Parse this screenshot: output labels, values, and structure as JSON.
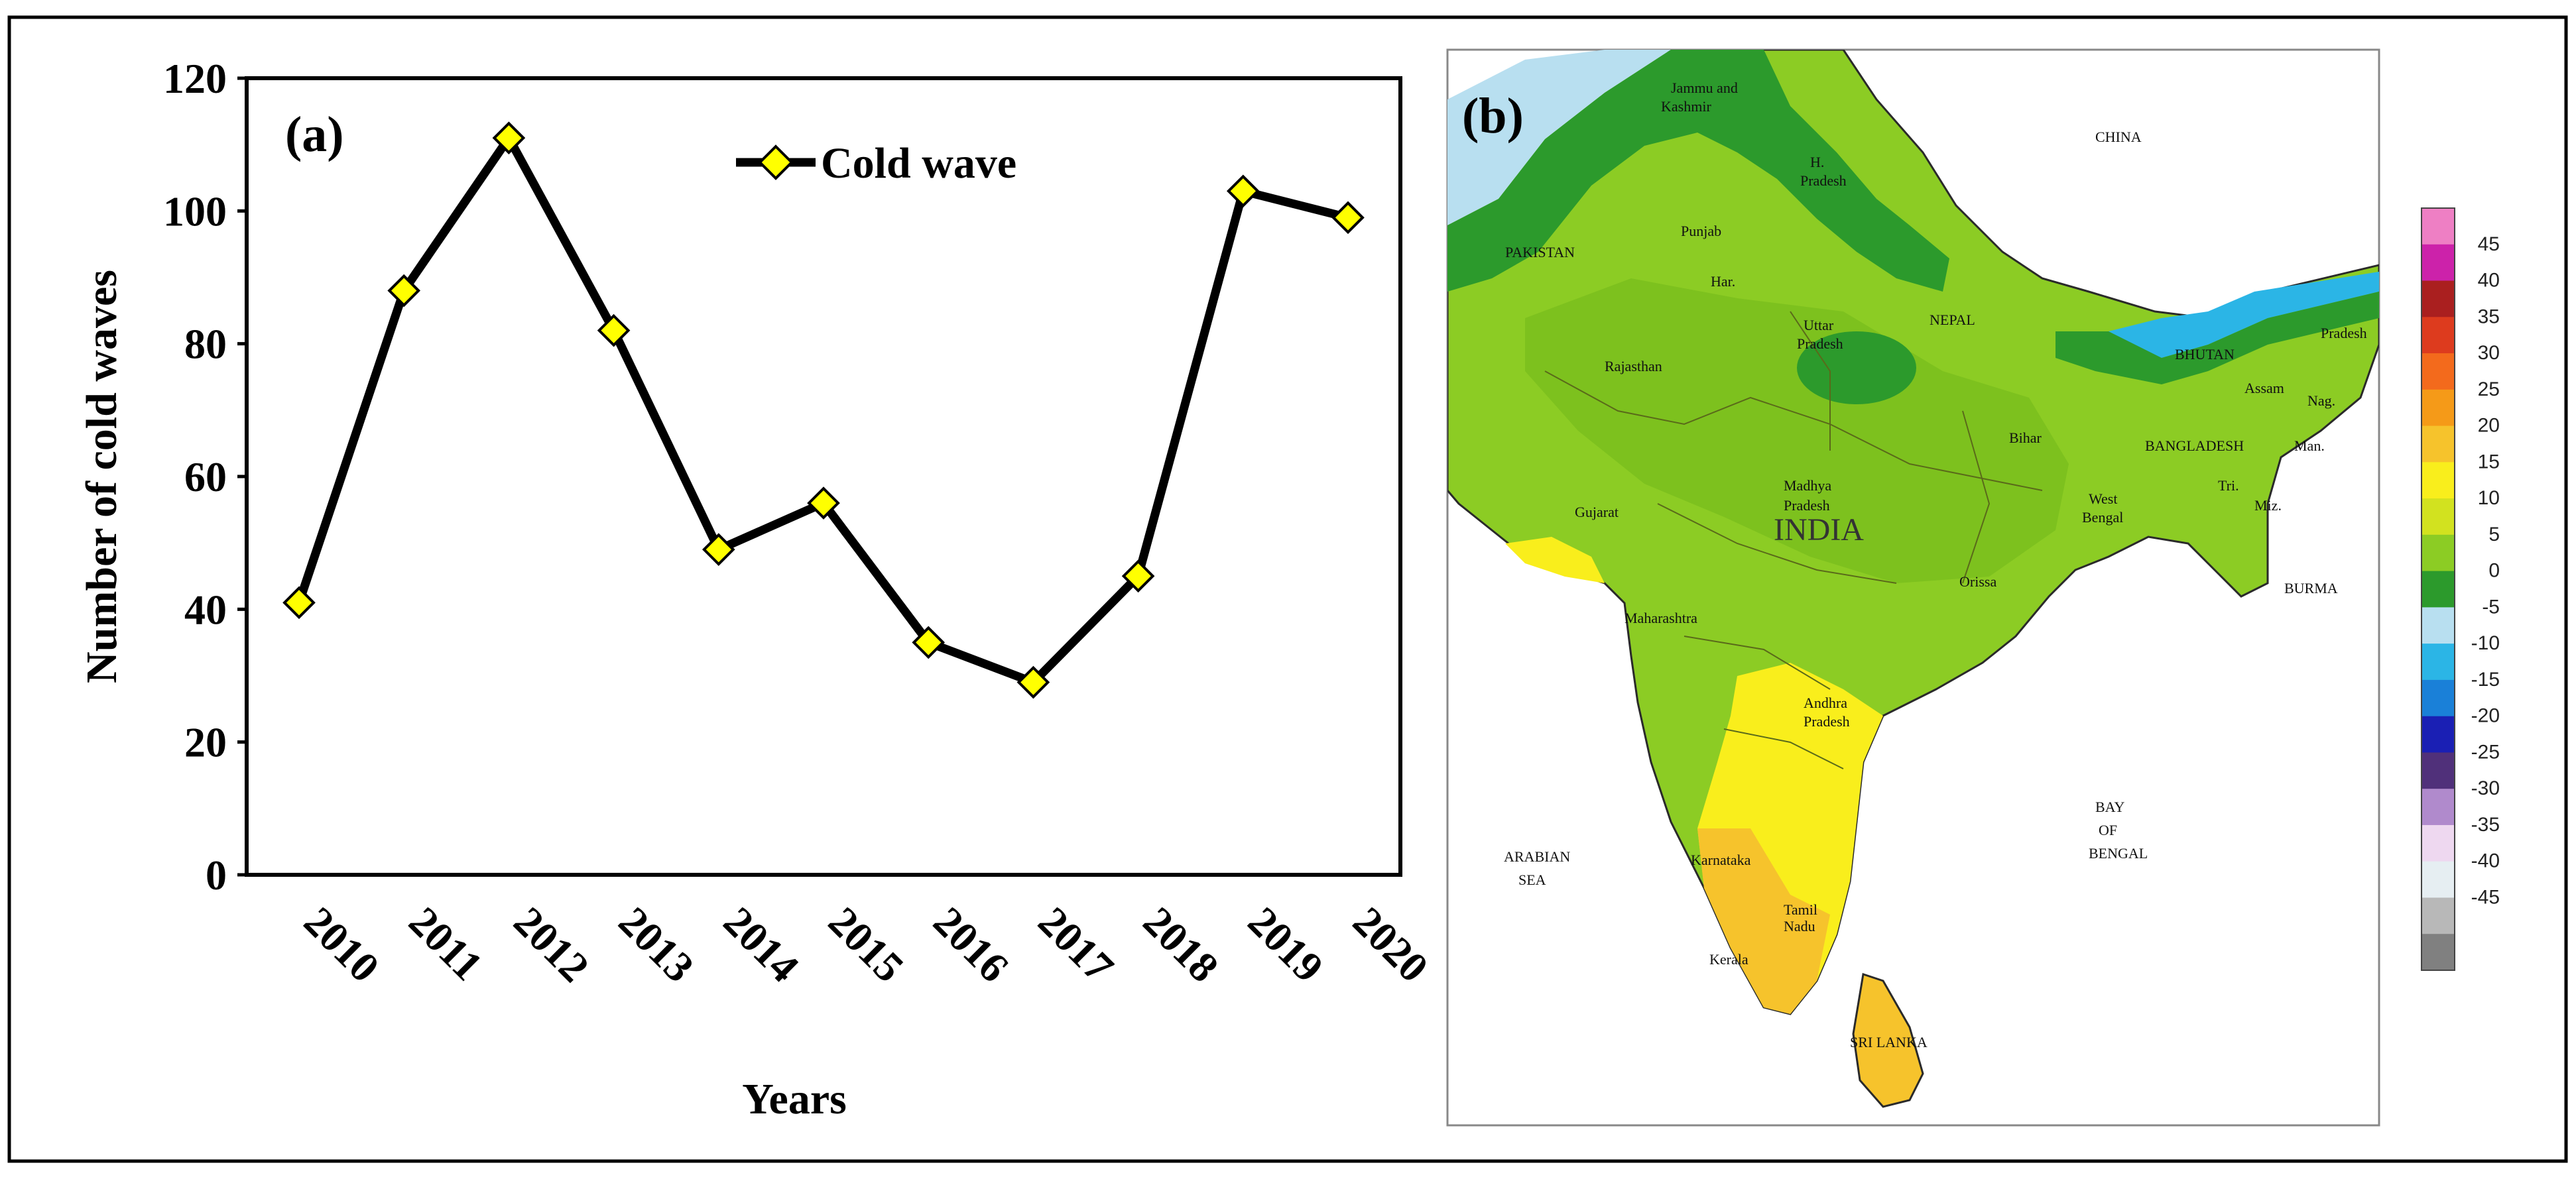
{
  "chart_data": [
    {
      "type": "line",
      "panel_label": "(a)",
      "title": "",
      "xlabel": "Years",
      "ylabel": "Number of cold waves",
      "categories": [
        "2010",
        "2011",
        "2012",
        "2013",
        "2014",
        "2015",
        "2016",
        "2017",
        "2018",
        "2019",
        "2020"
      ],
      "series": [
        {
          "name": "Cold wave",
          "values": [
            41,
            88,
            111,
            82,
            49,
            56,
            35,
            29,
            45,
            103,
            99
          ]
        }
      ],
      "ylim": [
        0,
        120
      ],
      "yticks": [
        0,
        20,
        40,
        60,
        80,
        100,
        120
      ],
      "grid": false,
      "legend": "top-right"
    },
    {
      "type": "heatmap",
      "panel_label": "(b)",
      "colorbar": {
        "ticks": [
          "45",
          "40",
          "35",
          "30",
          "25",
          "20",
          "15",
          "10",
          "5",
          "0",
          "-5",
          "-10",
          "-15",
          "-20",
          "-25",
          "-30",
          "-35",
          "-40",
          "-45"
        ],
        "colors": [
          "#ee7fc4",
          "#cc22aa",
          "#aa1f1f",
          "#dd3b1e",
          "#f36a1c",
          "#f59a18",
          "#f6c32c",
          "#f9ee1c",
          "#d2e21f",
          "#8ccc24",
          "#2c9a2c",
          "#b8dff0",
          "#2bb5e6",
          "#1a80d8",
          "#1a1fb4",
          "#50307a",
          "#b08acc",
          "#eed8f0",
          "#e6eef2",
          "#b8b8b8",
          "#808080"
        ]
      },
      "labels": {
        "regions": [
          "Jammu and",
          "Kashmir",
          "H.",
          "Pradesh",
          "Punjab",
          "Har.",
          "Uttar",
          "Pradesh",
          "Rajasthan",
          "Madhya",
          "Pradesh",
          "Gujarat",
          "Maharashtra",
          "Andhra",
          "Pradesh",
          "Karnataka",
          "Tamil",
          "Nadu",
          "Kerala",
          "Bihar",
          "West",
          "Bengal",
          "Orissa",
          "Assam",
          "Nag.",
          "Man.",
          "Tri.",
          "Miz.",
          "Pradesh"
        ],
        "countries": [
          "INDIA",
          "PAKISTAN",
          "CHINA",
          "NEPAL",
          "BHUTAN",
          "BANGLADESH",
          "BURMA",
          "SRI LANKA"
        ],
        "seas": [
          "ARABIAN",
          "SEA",
          "BAY",
          "OF",
          "BENGAL"
        ]
      }
    }
  ]
}
